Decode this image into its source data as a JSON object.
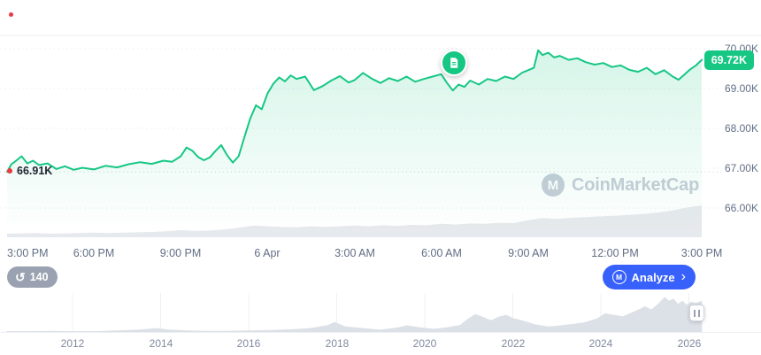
{
  "colors": {
    "green": "#16c784",
    "blue": "#3861fb",
    "red": "#ea3943",
    "gray_text": "#616e85",
    "light_gray_text": "#808a9d",
    "gridline": "#eef0f3",
    "open_line": "#cbd1d9",
    "volume_fill": "#e6e9ed",
    "brush_fill": "#dce1e7",
    "watermark": "#c7cdd8",
    "chip_bg": "#9aa2b1"
  },
  "price_chart": {
    "current_price_badge": "69.72K",
    "open_price_label": "66.91K"
  },
  "annotations": {
    "news_icon": "news-document-icon"
  },
  "watermark": {
    "logo_icon": "coinmarketcap-logo-icon",
    "logo_letter": "M",
    "text": "CoinMarketCap"
  },
  "toolbar": {
    "news_count": "140",
    "history_icon_glyph": "↺",
    "analyze_label": "Analyze",
    "analyze_logo_letter": "M",
    "chevron_glyph": "›"
  },
  "chart_data": [
    {
      "type": "area",
      "name": "btc-price-24h",
      "unit": "thousand USD",
      "grid": true,
      "legend": false,
      "open_value": 66.91,
      "last_value": 69.72,
      "x_axis": {
        "tick_labels": [
          "3:00 PM",
          "6:00 PM",
          "9:00 PM",
          "6 Apr",
          "3:00 AM",
          "6:00 AM",
          "9:00 AM",
          "12:00 PM",
          "3:00 PM"
        ],
        "tick_hours": [
          0,
          3,
          6,
          9,
          12,
          15,
          18,
          21,
          24
        ]
      },
      "y_axis": {
        "tick_labels": [
          "70.00K",
          "69.00K",
          "68.00K",
          "67.00K",
          "66.00K"
        ],
        "tick_values": [
          70,
          69,
          68,
          67,
          66
        ],
        "range": [
          65.7,
          70.35
        ]
      },
      "series": [
        {
          "name": "price",
          "x": [
            0,
            0.15,
            0.3,
            0.5,
            0.7,
            0.9,
            1.1,
            1.4,
            1.7,
            2,
            2.3,
            2.6,
            3,
            3.4,
            3.8,
            4.2,
            4.6,
            5,
            5.4,
            5.7,
            6,
            6.2,
            6.4,
            6.6,
            6.8,
            7,
            7.2,
            7.4,
            7.6,
            7.8,
            8,
            8.2,
            8.4,
            8.6,
            8.8,
            9,
            9.2,
            9.4,
            9.6,
            9.8,
            10,
            10.3,
            10.6,
            10.9,
            11.2,
            11.5,
            11.8,
            12,
            12.3,
            12.6,
            12.9,
            13.2,
            13.5,
            13.8,
            14.1,
            14.4,
            14.7,
            15,
            15.2,
            15.4,
            15.6,
            15.8,
            16,
            16.3,
            16.6,
            16.9,
            17.2,
            17.5,
            17.8,
            18,
            18.2,
            18.35,
            18.5,
            18.7,
            18.9,
            19.1,
            19.4,
            19.7,
            20,
            20.3,
            20.6,
            20.9,
            21.2,
            21.5,
            21.8,
            22.1,
            22.4,
            22.7,
            23,
            23.2,
            23.4,
            23.6,
            23.8,
            24
          ],
          "y": [
            66.91,
            67.1,
            67.18,
            67.3,
            67.12,
            67.19,
            67.08,
            67.12,
            66.98,
            67.05,
            66.96,
            67.01,
            66.97,
            67.06,
            67.02,
            67.1,
            67.15,
            67.11,
            67.19,
            67.16,
            67.3,
            67.52,
            67.44,
            67.28,
            67.2,
            67.27,
            67.43,
            67.58,
            67.33,
            67.14,
            67.3,
            67.78,
            68.25,
            68.58,
            68.48,
            68.88,
            69.12,
            69.28,
            69.18,
            69.33,
            69.24,
            69.3,
            68.96,
            69.06,
            69.2,
            69.31,
            69.15,
            69.21,
            69.39,
            69.25,
            69.14,
            69.26,
            69.19,
            69.3,
            69.17,
            69.24,
            69.3,
            69.36,
            69.14,
            68.95,
            69.1,
            69.04,
            69.2,
            69.1,
            69.24,
            69.19,
            69.3,
            69.24,
            69.4,
            69.46,
            69.52,
            69.96,
            69.84,
            69.9,
            69.78,
            69.82,
            69.72,
            69.76,
            69.66,
            69.6,
            69.64,
            69.54,
            69.58,
            69.47,
            69.42,
            69.52,
            69.36,
            69.46,
            69.3,
            69.22,
            69.35,
            69.48,
            69.58,
            69.72
          ]
        },
        {
          "name": "volume_relative",
          "x": [
            0,
            0.5,
            1,
            1.5,
            2,
            2.5,
            3,
            3.5,
            4,
            4.5,
            5,
            5.5,
            6,
            6.5,
            7,
            7.5,
            8,
            8.5,
            9,
            9.5,
            10,
            10.5,
            11,
            11.5,
            12,
            12.5,
            13,
            13.5,
            14,
            14.5,
            15,
            15.5,
            16,
            16.5,
            17,
            17.5,
            18,
            18.5,
            19,
            19.5,
            20,
            20.5,
            21,
            21.5,
            22,
            22.5,
            23,
            23.5,
            24
          ],
          "y": [
            0.1,
            0.11,
            0.12,
            0.1,
            0.11,
            0.12,
            0.13,
            0.12,
            0.13,
            0.14,
            0.15,
            0.17,
            0.2,
            0.18,
            0.19,
            0.22,
            0.27,
            0.33,
            0.31,
            0.29,
            0.28,
            0.31,
            0.29,
            0.31,
            0.33,
            0.31,
            0.34,
            0.32,
            0.35,
            0.34,
            0.38,
            0.36,
            0.39,
            0.38,
            0.41,
            0.4,
            0.48,
            0.54,
            0.52,
            0.55,
            0.57,
            0.59,
            0.61,
            0.63,
            0.66,
            0.7,
            0.76,
            0.84,
            0.9
          ]
        }
      ]
    },
    {
      "type": "area",
      "name": "all-time-range-selector",
      "x_axis": {
        "tick_labels": [
          "2012",
          "2014",
          "2016",
          "2018",
          "2020",
          "2022",
          "2024",
          "2026"
        ],
        "tick_years": [
          2012,
          2014,
          2016,
          2018,
          2020,
          2022,
          2024,
          2026
        ]
      },
      "series": [
        {
          "name": "price_normalized",
          "x": [
            2010.5,
            2011,
            2011.5,
            2012,
            2012.5,
            2013,
            2013.5,
            2013.9,
            2014.2,
            2014.6,
            2015,
            2015.5,
            2016,
            2016.5,
            2017,
            2017.4,
            2017.8,
            2017.95,
            2018.2,
            2018.6,
            2019,
            2019.4,
            2019.6,
            2019.9,
            2020.2,
            2020.5,
            2020.8,
            2021.0,
            2021.15,
            2021.3,
            2021.5,
            2021.7,
            2021.85,
            2022.0,
            2022.2,
            2022.5,
            2022.8,
            2023.0,
            2023.3,
            2023.6,
            2023.9,
            2024.1,
            2024.3,
            2024.5,
            2024.7,
            2024.9,
            2025.0,
            2025.15,
            2025.3,
            2025.45,
            2025.55,
            2025.65,
            2025.75,
            2025.85,
            2025.95,
            2026.05,
            2026.15,
            2026.3
          ],
          "y": [
            0.02,
            0.02,
            0.03,
            0.02,
            0.02,
            0.04,
            0.06,
            0.1,
            0.06,
            0.04,
            0.03,
            0.03,
            0.04,
            0.05,
            0.07,
            0.1,
            0.18,
            0.26,
            0.14,
            0.1,
            0.06,
            0.12,
            0.17,
            0.12,
            0.08,
            0.12,
            0.18,
            0.36,
            0.46,
            0.4,
            0.3,
            0.4,
            0.44,
            0.36,
            0.3,
            0.2,
            0.14,
            0.16,
            0.2,
            0.24,
            0.34,
            0.48,
            0.44,
            0.4,
            0.5,
            0.6,
            0.66,
            0.58,
            0.72,
            0.9,
            0.8,
            0.86,
            0.72,
            0.8,
            0.7,
            0.78,
            0.74,
            0.8
          ]
        }
      ]
    }
  ]
}
